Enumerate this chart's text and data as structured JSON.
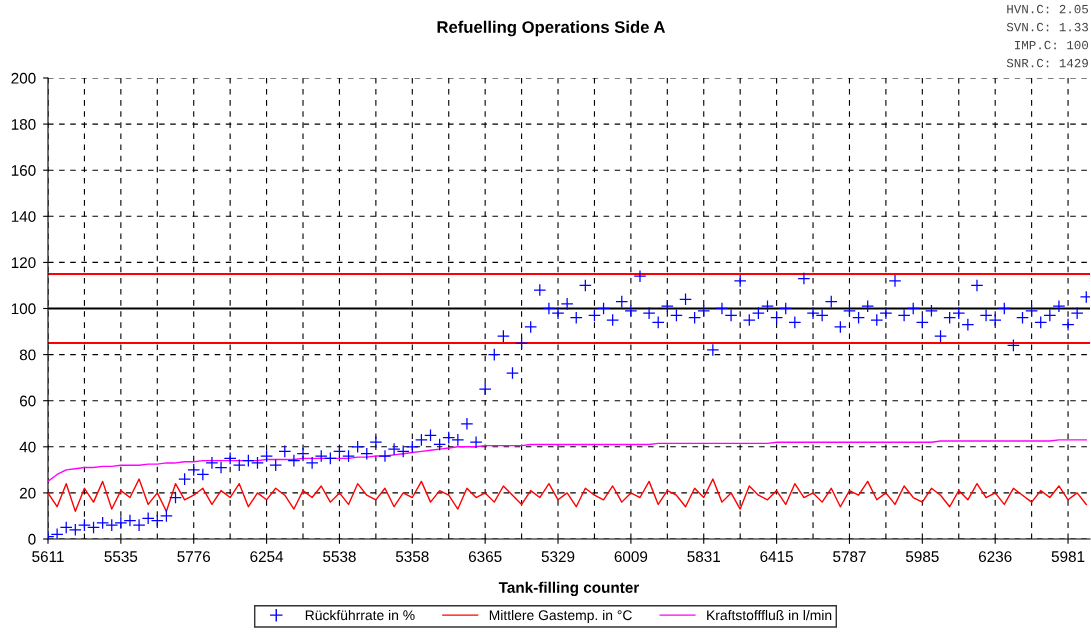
{
  "chart_data": {
    "type": "scatter",
    "title": "Refuelling Operations Side A",
    "xlabel": "Tank-filling counter",
    "annotations": [
      "HVN.C: 2.05",
      "SVN.C: 1.33",
      "IMP.C: 100",
      "SNR.C: 1429"
    ],
    "categories": [
      "5611",
      null,
      null,
      null,
      null,
      null,
      null,
      null,
      "5535",
      null,
      null,
      null,
      null,
      null,
      null,
      null,
      "5776",
      null,
      null,
      null,
      null,
      null,
      null,
      null,
      "6254",
      null,
      null,
      null,
      null,
      null,
      null,
      null,
      "5538",
      null,
      null,
      null,
      null,
      null,
      null,
      null,
      "5358",
      null,
      null,
      null,
      null,
      null,
      null,
      null,
      "6365",
      null,
      null,
      null,
      null,
      null,
      null,
      null,
      "5329",
      null,
      null,
      null,
      null,
      null,
      null,
      null,
      "6009",
      null,
      null,
      null,
      null,
      null,
      null,
      null,
      "5831",
      null,
      null,
      null,
      null,
      null,
      null,
      null,
      "6415",
      null,
      null,
      null,
      null,
      null,
      null,
      null,
      "5787",
      null,
      null,
      null,
      null,
      null,
      null,
      null,
      "5985",
      null,
      null,
      null,
      null,
      null,
      null,
      null,
      "6236",
      null,
      null,
      null,
      null,
      null,
      null,
      null,
      "5981",
      null,
      null
    ],
    "series": [
      {
        "name": "Rückführrate in %",
        "marker": "cross",
        "color": "#0000ff",
        "values": [
          1,
          2,
          5,
          4,
          6,
          5,
          7,
          6,
          7,
          8,
          6,
          9,
          8,
          10,
          18,
          26,
          30,
          28,
          33,
          31,
          35,
          32,
          34,
          33,
          36,
          32,
          38,
          34,
          37,
          33,
          36,
          35,
          38,
          36,
          40,
          37,
          42,
          36,
          39,
          38,
          40,
          43,
          45,
          41,
          44,
          43,
          50,
          42,
          65,
          80,
          88,
          72,
          85,
          92,
          108,
          100,
          98,
          102,
          96,
          110,
          97,
          100,
          95,
          103,
          99,
          114,
          98,
          94,
          101,
          97,
          104,
          96,
          99,
          82,
          100,
          97,
          112,
          95,
          98,
          101,
          96,
          100,
          94,
          113,
          98,
          97,
          103,
          92,
          99,
          96,
          101,
          95,
          98,
          112,
          97,
          100,
          94,
          99,
          88,
          96,
          98,
          93,
          110,
          97,
          95,
          100,
          84,
          96,
          99,
          94,
          97,
          101,
          93,
          98,
          105
        ]
      },
      {
        "name": "Mittlere Gastemp. in °C",
        "type": "line",
        "marker": "none",
        "color": "#ff0000",
        "values": [
          20,
          14,
          24,
          12,
          22,
          16,
          25,
          13,
          21,
          18,
          26,
          15,
          20,
          12,
          24,
          17,
          19,
          22,
          15,
          21,
          18,
          24,
          14,
          20,
          17,
          22,
          19,
          13,
          21,
          18,
          23,
          16,
          20,
          15,
          24,
          19,
          17,
          22,
          14,
          20,
          18,
          25,
          16,
          21,
          19,
          13,
          22,
          18,
          20,
          16,
          23,
          19,
          15,
          21,
          18,
          24,
          17,
          20,
          14,
          22,
          19,
          17,
          23,
          16,
          20,
          18,
          25,
          15,
          21,
          19,
          14,
          22,
          18,
          26,
          16,
          20,
          13,
          23,
          19,
          17,
          21,
          15,
          24,
          18,
          20,
          16,
          22,
          14,
          21,
          19,
          25,
          17,
          20,
          15,
          23,
          18,
          16,
          22,
          19,
          14,
          21,
          17,
          24,
          18,
          20,
          15,
          22,
          19,
          16,
          21,
          18,
          23,
          17,
          20,
          15
        ]
      },
      {
        "name": "Kraftstofffluß in l/min",
        "type": "line",
        "marker": "none",
        "color": "#ff00ff",
        "values": [
          25,
          28,
          30,
          30.5,
          31,
          31,
          31.5,
          31.5,
          32,
          32,
          32,
          32.5,
          32.5,
          33,
          33,
          33.5,
          33.5,
          34,
          34,
          34,
          34,
          34,
          34,
          34,
          34.5,
          34.5,
          34.5,
          34.5,
          35,
          35,
          35,
          35,
          35,
          35,
          35.5,
          35.5,
          36,
          36,
          36.5,
          37,
          37.5,
          38,
          38.5,
          39,
          39.5,
          40,
          40,
          40,
          40.5,
          40.5,
          40.5,
          40.5,
          40.5,
          41,
          41,
          41,
          41,
          41,
          41,
          41,
          41,
          41,
          41,
          41,
          41,
          41,
          41,
          41.5,
          41.5,
          41.5,
          41.5,
          41.5,
          41.5,
          41.5,
          41.5,
          41.5,
          41.5,
          41.5,
          41.5,
          41.5,
          42,
          42,
          42,
          42,
          42,
          42,
          42,
          42,
          42,
          42,
          42,
          42,
          42,
          42,
          42,
          42,
          42,
          42,
          42.5,
          42.5,
          42.5,
          42.5,
          42.5,
          42.5,
          42.5,
          42.5,
          42.5,
          42.5,
          42.5,
          42.5,
          42.5,
          43,
          43,
          43,
          43
        ]
      }
    ],
    "ref_lines": [
      {
        "axis": "y",
        "value": 115,
        "color": "#ff0000"
      },
      {
        "axis": "y",
        "value": 100,
        "color": "#000000"
      },
      {
        "axis": "y",
        "value": 85,
        "color": "#ff0000"
      }
    ],
    "ylim": [
      0,
      200
    ],
    "yticks": [
      0,
      20,
      40,
      60,
      80,
      100,
      120,
      140,
      160,
      180,
      200
    ],
    "grid": true,
    "legend": "bottom"
  }
}
